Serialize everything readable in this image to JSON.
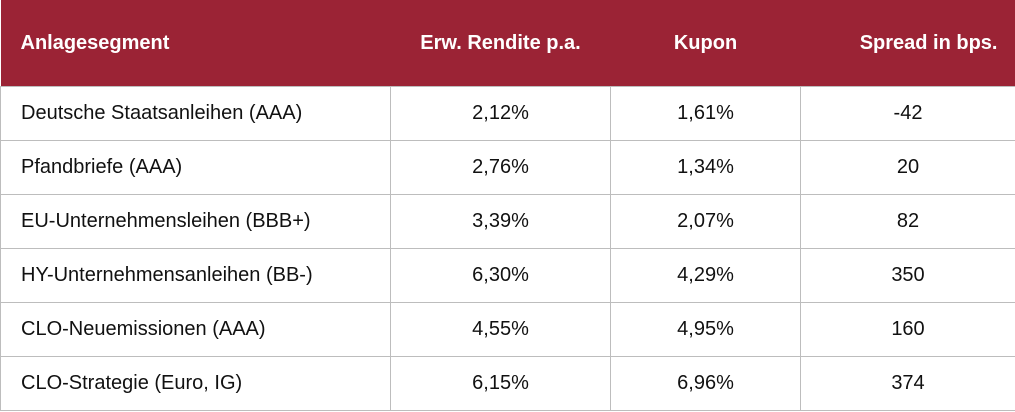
{
  "table": {
    "headers": [
      "Anlagesegment",
      "Erw. Rendite p.a.",
      "Kupon",
      "Spread in bps."
    ],
    "rows": [
      [
        "Deutsche Staatsanleihen (AAA)",
        "2,12%",
        "1,61%",
        "-42"
      ],
      [
        "Pfandbriefe (AAA)",
        "2,76%",
        "1,34%",
        "20"
      ],
      [
        "EU-Unternehmensleihen (BBB+)",
        "3,39%",
        "2,07%",
        "82"
      ],
      [
        "HY-Unternehmensanleihen (BB-)",
        "6,30%",
        "4,29%",
        "350"
      ],
      [
        "CLO-Neuemissionen (AAA)",
        "4,55%",
        "4,95%",
        "160"
      ],
      [
        "CLO-Strategie (Euro, IG)",
        "6,15%",
        "6,96%",
        "374"
      ]
    ]
  }
}
